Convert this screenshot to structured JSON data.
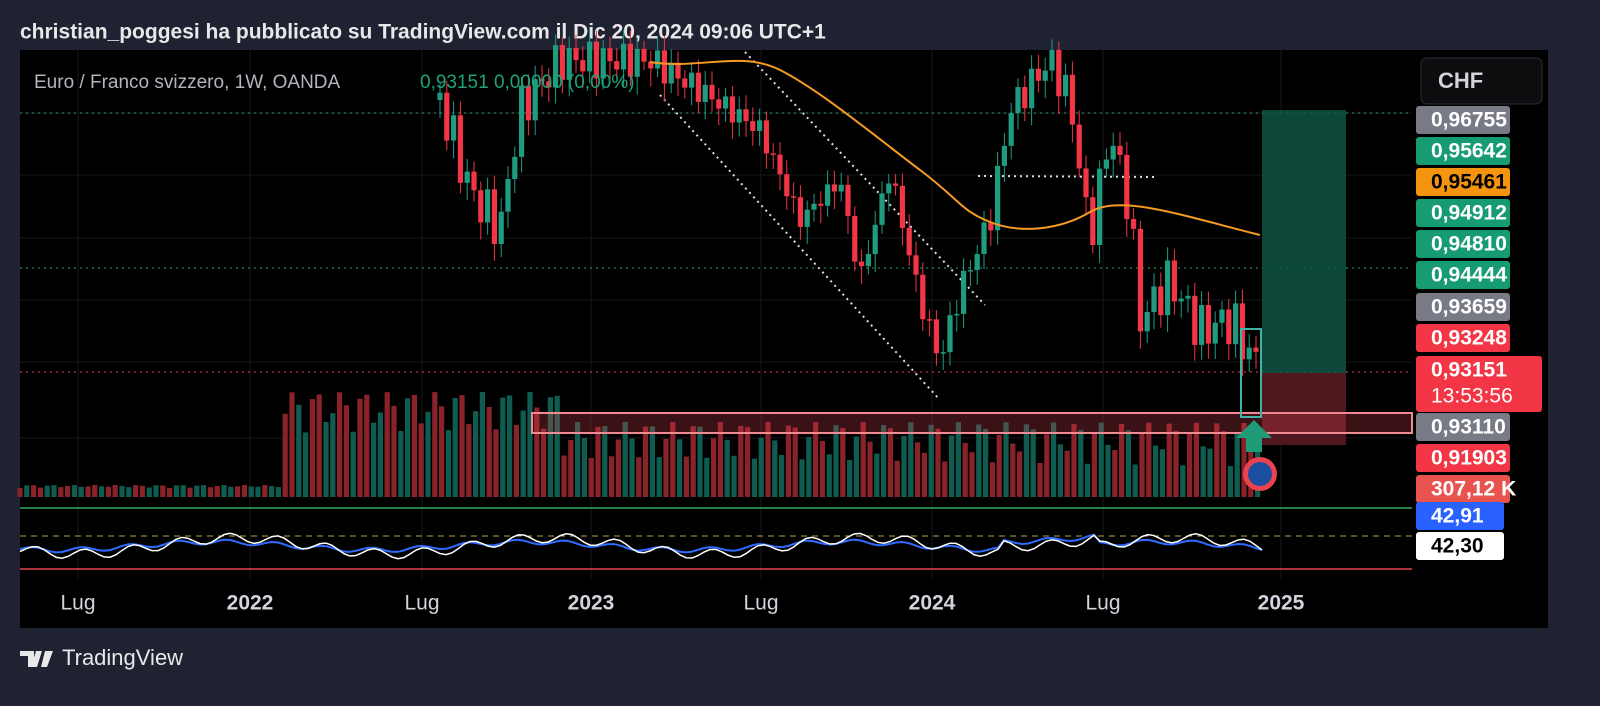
{
  "header": {
    "text": "christian_poggesi ha pubblicato su TradingView.com il Dic 20, 2024 09:06 UTC+1"
  },
  "legend": {
    "symbol": "Euro / Franco svizzero, 1W, OANDA",
    "quote": "0,93151 0,00000 (0,00%)"
  },
  "currency_button": "CHF",
  "price_labels": [
    "0,96755",
    "0,95642",
    "0,95461",
    "0,94912",
    "0,94810",
    "0,94444",
    "0,93659",
    "0,93248",
    "0,93151",
    "0,93110",
    "0,91903",
    "307,12 K"
  ],
  "countdown": "13:53:56",
  "rsi_labels": [
    "42,91",
    "42,30"
  ],
  "x_axis_labels": [
    "Lug",
    "2022",
    "Lug",
    "2023",
    "Lug",
    "2024",
    "Lug",
    "2025"
  ],
  "footer": {
    "brand": "TradingView"
  }
}
